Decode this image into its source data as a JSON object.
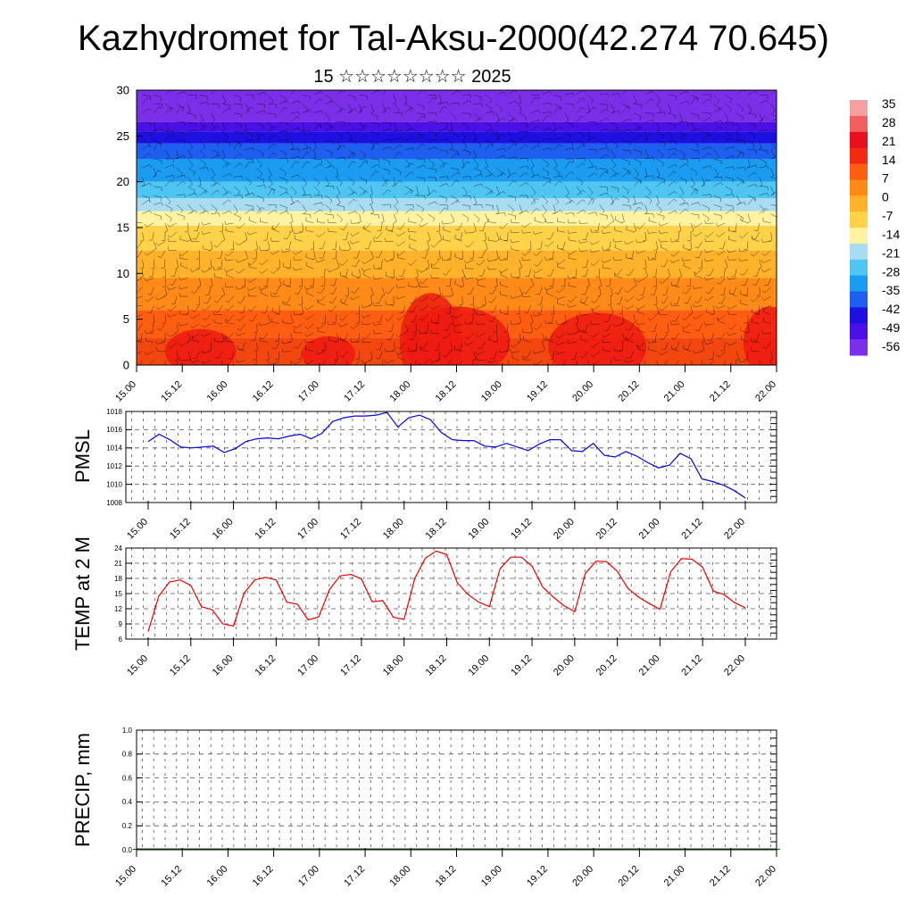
{
  "header": {
    "title": "Kazhydromet for Tal-Aksu-2000(42.274 70.645)",
    "subtitle": "15 ☆☆☆☆☆☆☆☆ 2025"
  },
  "colorbar": {
    "labels": [
      "35",
      "28",
      "21",
      "14",
      "7",
      "0",
      "-7",
      "-14",
      "-21",
      "-28",
      "-35",
      "-42",
      "-49",
      "-56"
    ],
    "colors": [
      "#7b2fe8",
      "#4a10e6",
      "#1e10e0",
      "#1f5ff0",
      "#1b9cf0",
      "#4fc6f2",
      "#a8dcf0",
      "#fff2a0",
      "#ffd24a",
      "#ffb22a",
      "#ff8a18",
      "#ff5e10",
      "#f22a14",
      "#e8101e",
      "#f06060",
      "#f4a0a0"
    ]
  },
  "chart_data": [
    {
      "type": "heatmap",
      "title": "",
      "ylabel": "",
      "ylim": [
        0,
        30
      ],
      "yticks": [
        "0",
        "5",
        "10",
        "15",
        "20",
        "25",
        "30"
      ],
      "xticks": [
        "15.00",
        "15.12",
        "16.00",
        "16.12",
        "17.00",
        "17.12",
        "18.00",
        "18.12",
        "19.00",
        "19.12",
        "20.00",
        "20.12",
        "21.00",
        "21.12",
        "22.00"
      ],
      "overlay": "wind barbs"
    },
    {
      "type": "line",
      "ylabel": "PMSL",
      "ylim": [
        1008,
        1018
      ],
      "yticks": [
        "1008",
        "1010",
        "1012",
        "1014",
        "1016",
        "1018"
      ],
      "xticks": [
        "15.00",
        "15.12",
        "16.00",
        "16.12",
        "17.00",
        "17.12",
        "18.00",
        "18.12",
        "19.00",
        "19.12",
        "20.00",
        "20.12",
        "21.00",
        "21.12",
        "22.00"
      ],
      "color": "#0000ee",
      "values": [
        1014.7,
        1015.5,
        1014.9,
        1014.1,
        1014.0,
        1014.1,
        1014.2,
        1013.5,
        1013.9,
        1014.7,
        1015.0,
        1015.1,
        1015.0,
        1015.3,
        1015.5,
        1015.0,
        1015.6,
        1016.9,
        1017.3,
        1017.5,
        1017.5,
        1017.6,
        1017.9,
        1016.3,
        1017.3,
        1017.6,
        1017.1,
        1015.7,
        1014.9,
        1014.8,
        1014.8,
        1014.2,
        1014.1,
        1014.5,
        1014.1,
        1013.7,
        1014.4,
        1014.9,
        1014.9,
        1013.7,
        1013.6,
        1014.5,
        1013.2,
        1013.0,
        1013.6,
        1013.1,
        1012.4,
        1011.8,
        1012.1,
        1013.4,
        1012.8,
        1010.6,
        1010.3,
        1009.9,
        1009.3,
        1008.5
      ]
    },
    {
      "type": "line",
      "ylabel": "TEMP at 2 M",
      "ylim": [
        6,
        24
      ],
      "yticks": [
        "6",
        "9",
        "12",
        "15",
        "18",
        "21",
        "24"
      ],
      "xticks": [
        "15.00",
        "15.12",
        "16.00",
        "16.12",
        "17.00",
        "17.12",
        "18.00",
        "18.12",
        "19.00",
        "19.12",
        "20.00",
        "20.12",
        "21.00",
        "21.12",
        "22.00"
      ],
      "color": "#ee0000",
      "values": [
        7.5,
        14.5,
        17.3,
        17.7,
        16.6,
        12.4,
        11.8,
        9.0,
        8.6,
        15.1,
        17.7,
        18.2,
        17.7,
        13.3,
        12.9,
        9.8,
        10.4,
        15.8,
        18.5,
        18.8,
        17.9,
        13.4,
        13.6,
        10.3,
        9.9,
        18.0,
        22.0,
        23.4,
        22.7,
        17.1,
        14.8,
        13.3,
        12.4,
        19.9,
        22.2,
        22.2,
        20.4,
        16.3,
        14.3,
        12.6,
        11.4,
        19.0,
        21.4,
        21.3,
        19.4,
        16.0,
        14.3,
        13.0,
        11.9,
        19.3,
        21.9,
        21.8,
        20.2,
        15.5,
        14.8,
        13.2,
        12.2
      ]
    },
    {
      "type": "bar",
      "ylabel": "PRECIP, mm",
      "ylim": [
        0,
        1
      ],
      "yticks": [
        "0.0",
        "0.2",
        "0.4",
        "0.6",
        "0.8",
        "1.0"
      ],
      "xticks": [
        "15.00",
        "15.12",
        "16.00",
        "16.12",
        "17.00",
        "17.12",
        "18.00",
        "18.12",
        "19.00",
        "19.12",
        "20.00",
        "20.12",
        "21.00",
        "21.12",
        "22.00"
      ],
      "values": [
        0,
        0,
        0,
        0,
        0,
        0,
        0,
        0,
        0,
        0,
        0,
        0,
        0,
        0,
        0,
        0,
        0,
        0,
        0,
        0,
        0,
        0,
        0,
        0,
        0,
        0,
        0,
        0,
        0,
        0,
        0,
        0,
        0,
        0,
        0,
        0,
        0,
        0,
        0,
        0,
        0,
        0,
        0,
        0,
        0,
        0,
        0,
        0,
        0,
        0,
        0,
        0,
        0,
        0,
        0,
        0,
        0
      ]
    }
  ]
}
